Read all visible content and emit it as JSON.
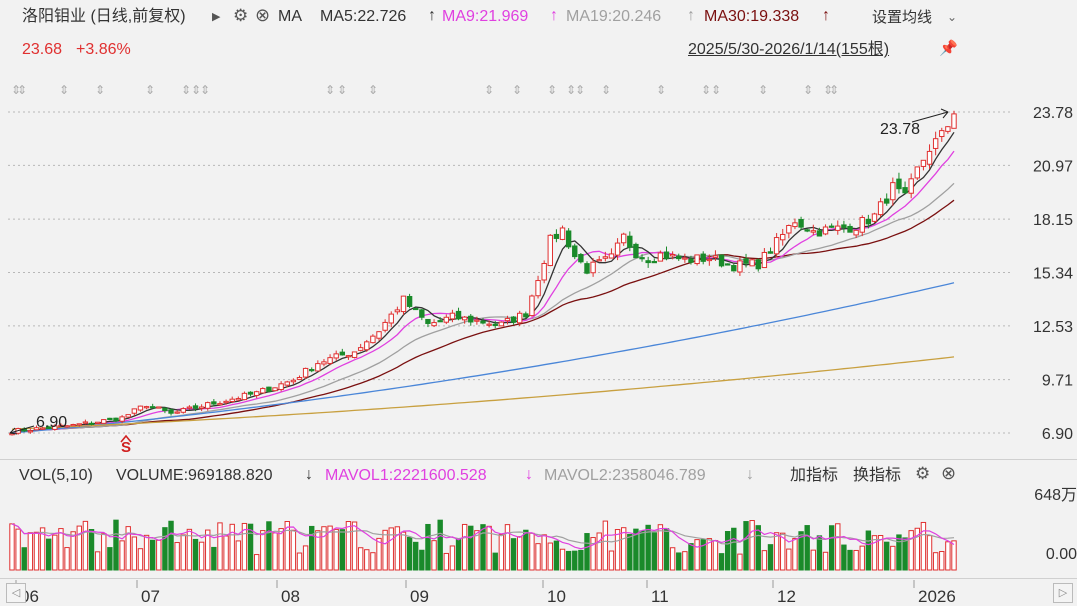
{
  "header": {
    "stock_name": "洛阳钼业 (日线,前复权)",
    "ma_label": "MA",
    "ma5": "MA5:22.726",
    "ma9": "MA9:21.969",
    "ma19": "MA19:20.246",
    "ma30": "MA30:19.338",
    "settings_label": "设置均线",
    "price": "23.68",
    "change": "+3.86%",
    "range": "2025/5/30-2026/1/14(155根)"
  },
  "volume_header": {
    "label": "VOL(5,10)",
    "volume": "VOLUME:969188.820",
    "mavol1": "MAVOL1:2221600.528",
    "mavol2": "MAVOL2:2358046.789",
    "add_indicator": "加指标",
    "switch_indicator": "换指标"
  },
  "colors": {
    "up": "#e03030",
    "down": "#1a8a2a",
    "ma5": "#333333",
    "ma9": "#e040e0",
    "ma19": "#a0a0a0",
    "ma30": "#7a1010",
    "ma_blue": "#4a86d8",
    "ma_gold": "#c8a040"
  },
  "chart_data": [
    {
      "type": "candlestick",
      "title": "洛阳钼业 (日线,前复权)",
      "y_tick_labels": [
        "23.78",
        "20.97",
        "18.15",
        "15.34",
        "12.53",
        "9.71",
        "6.90"
      ],
      "ylim": [
        6.9,
        23.78
      ],
      "x_tick_labels": [
        "06",
        "07",
        "08",
        "09",
        "10",
        "11",
        "12",
        "2026"
      ],
      "bar_count": 155,
      "annotations": [
        "23.78",
        "6.90"
      ],
      "close_anchors": [
        [
          0,
          7.0
        ],
        [
          10,
          7.3
        ],
        [
          18,
          7.7
        ],
        [
          22,
          8.4
        ],
        [
          26,
          7.9
        ],
        [
          32,
          8.4
        ],
        [
          40,
          9.0
        ],
        [
          46,
          9.7
        ],
        [
          50,
          10.6
        ],
        [
          56,
          11.2
        ],
        [
          60,
          12.3
        ],
        [
          64,
          13.9
        ],
        [
          68,
          12.6
        ],
        [
          72,
          13.0
        ],
        [
          76,
          12.8
        ],
        [
          80,
          12.6
        ],
        [
          84,
          13.2
        ],
        [
          86,
          15.1
        ],
        [
          88,
          17.0
        ],
        [
          90,
          17.6
        ],
        [
          92,
          16.2
        ],
        [
          94,
          15.5
        ],
        [
          98,
          16.1
        ],
        [
          100,
          17.2
        ],
        [
          102,
          16.4
        ],
        [
          104,
          16.1
        ],
        [
          106,
          16.3
        ],
        [
          110,
          16.0
        ],
        [
          114,
          16.1
        ],
        [
          118,
          15.7
        ],
        [
          122,
          15.8
        ],
        [
          125,
          16.9
        ],
        [
          128,
          18.1
        ],
        [
          131,
          17.5
        ],
        [
          134,
          17.6
        ],
        [
          138,
          17.8
        ],
        [
          141,
          18.3
        ],
        [
          144,
          19.8
        ],
        [
          146,
          19.2
        ],
        [
          148,
          20.7
        ],
        [
          150,
          21.9
        ],
        [
          152,
          22.5
        ],
        [
          154,
          23.68
        ]
      ],
      "moving_averages": [
        {
          "name": "MA5",
          "last": 22.726
        },
        {
          "name": "MA9",
          "last": 21.969
        },
        {
          "name": "MA19",
          "last": 20.246
        },
        {
          "name": "MA30",
          "last": 19.338
        },
        {
          "name": "long-blue",
          "start": 6.9,
          "end": 14.8
        },
        {
          "name": "long-gold",
          "start": 7.1,
          "end": 10.9
        }
      ]
    },
    {
      "type": "bar",
      "title": "VOL(5,10)",
      "y_tick_labels": [
        "648万",
        "0.00"
      ],
      "ylim": [
        0,
        6480000
      ],
      "last_volume": 969188.82,
      "series": [
        {
          "name": "MAVOL1",
          "last": 2221600.528
        },
        {
          "name": "MAVOL2",
          "last": 2358046.789
        }
      ]
    }
  ]
}
